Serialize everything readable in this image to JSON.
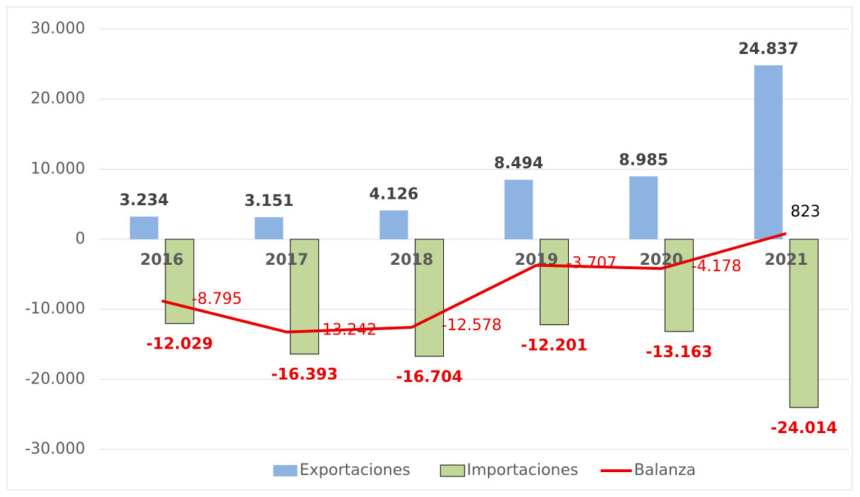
{
  "chart_data": {
    "type": "bar_line",
    "categories": [
      "2016",
      "2017",
      "2018",
      "2019",
      "2020",
      "2021"
    ],
    "series": [
      {
        "name": "Exportaciones",
        "type": "bar",
        "color": "#8db3e2",
        "values": [
          3234,
          3151,
          4126,
          8494,
          8985,
          24837
        ],
        "value_labels": [
          "3.234",
          "3.151",
          "4.126",
          "8.494",
          "8.985",
          "24.837"
        ]
      },
      {
        "name": "Importaciones",
        "type": "bar",
        "color": "#c4d79b",
        "values": [
          -12029,
          -16393,
          -16704,
          -12201,
          -13163,
          -24014
        ],
        "value_labels": [
          "-12.029",
          "-16.393",
          "-16.704",
          "-12.201",
          "-13.163",
          "-24.014"
        ]
      },
      {
        "name": "Balanza",
        "type": "line",
        "color": "#e60000",
        "values": [
          -8795,
          -13242,
          -12578,
          -3707,
          -4178,
          823
        ],
        "value_labels": [
          "-8.795",
          "-13.242",
          "-12.578",
          "-3.707",
          "-4.178",
          "823"
        ]
      }
    ],
    "ylim": [
      -30000,
      30000
    ],
    "yticks": [
      {
        "value": -30000,
        "label": "-30.000"
      },
      {
        "value": -20000,
        "label": "-20.000"
      },
      {
        "value": -10000,
        "label": "-10.000"
      },
      0,
      {
        "value": 10000,
        "label": "10.000"
      },
      {
        "value": 20000,
        "label": "20.000"
      },
      {
        "value": 30000,
        "label": "30.000"
      }
    ],
    "grid": true,
    "legend": "bottom"
  }
}
